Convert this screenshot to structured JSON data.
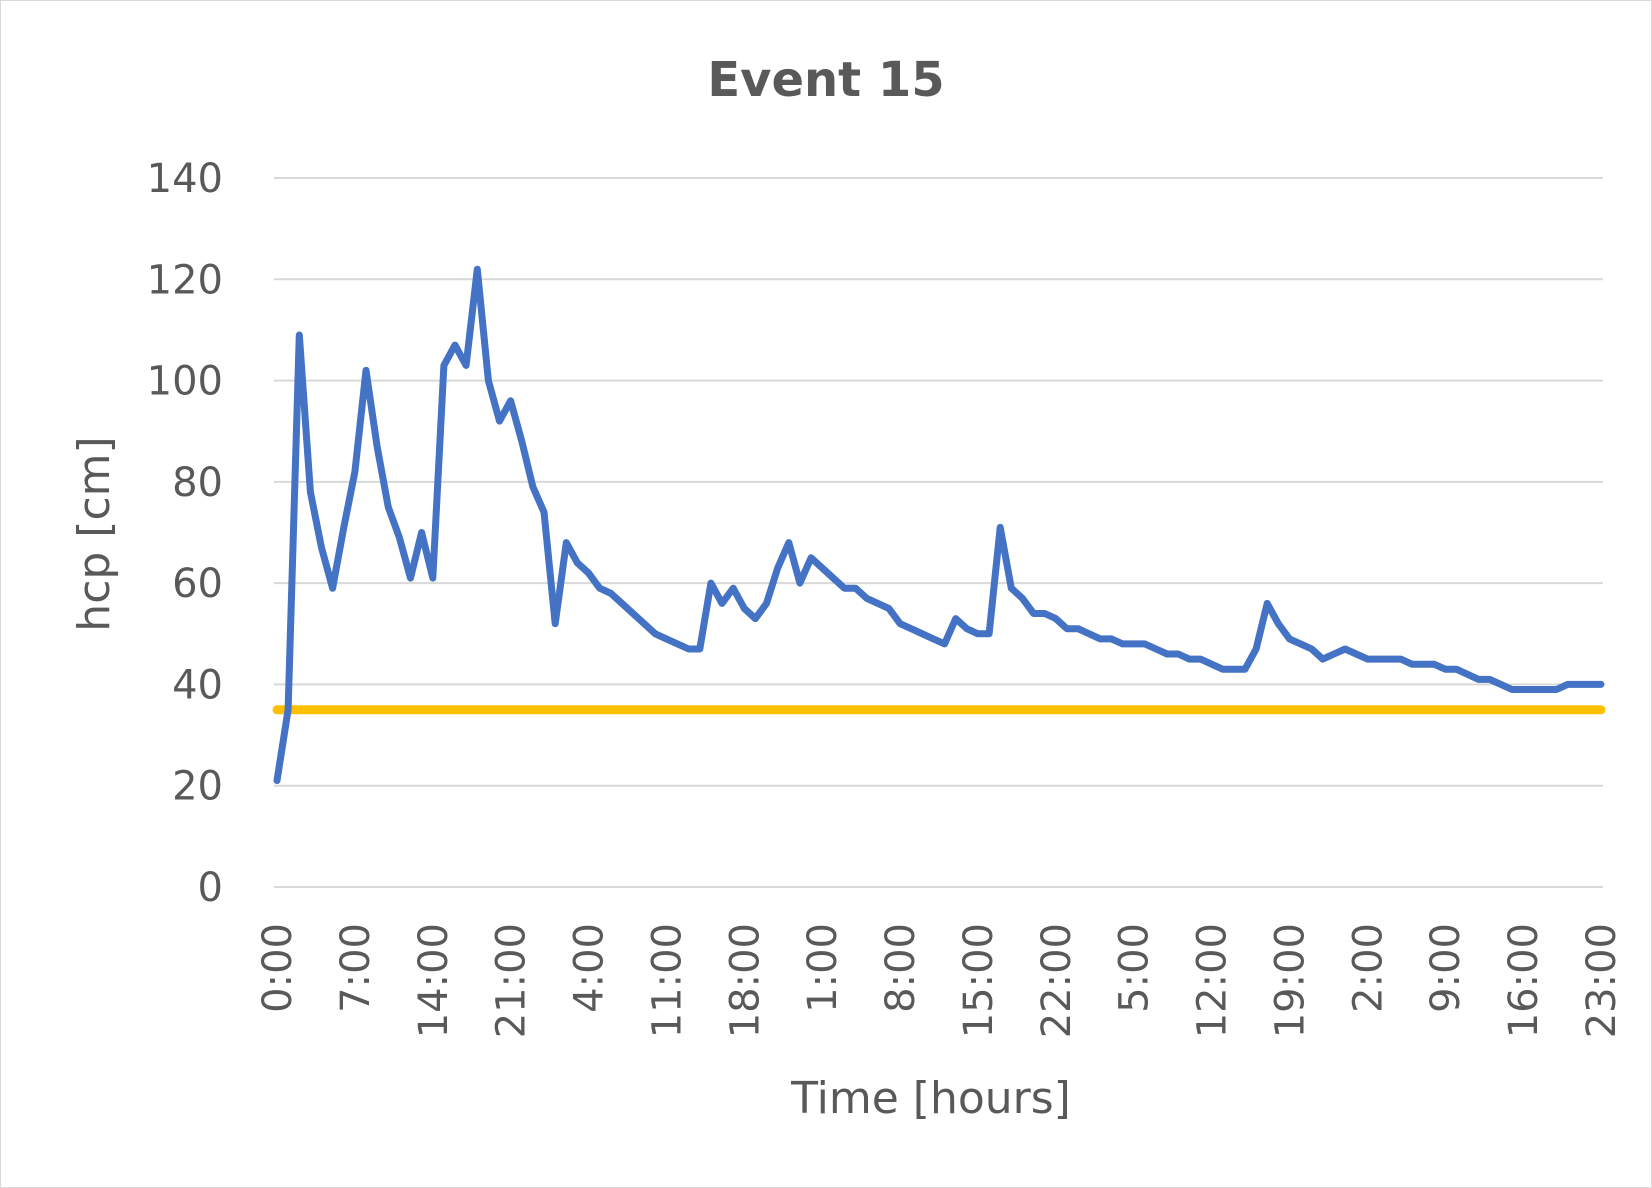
{
  "chart_data": {
    "type": "line",
    "title": "Event 15",
    "xlabel": "Time [hours]",
    "ylabel": "hcp [cm]",
    "ylim": [
      0,
      140
    ],
    "y_ticks": [
      "0",
      "20",
      "40",
      "60",
      "80",
      "100",
      "120",
      "140"
    ],
    "x_tick_labels": [
      "0:00",
      "7:00",
      "14:00",
      "21:00",
      "4:00",
      "11:00",
      "18:00",
      "1:00",
      "8:00",
      "15:00",
      "22:00",
      "5:00",
      "12:00",
      "19:00",
      "2:00",
      "9:00",
      "16:00",
      "23:00"
    ],
    "x_unit": "hours",
    "x_range": [
      0,
      119
    ],
    "grid": true,
    "legend": "none",
    "colors": {
      "hcp": "#4472c4",
      "threshold": "#ffc000",
      "grid": "#d9d9d9",
      "text": "#595959"
    },
    "series": [
      {
        "key": "hcp",
        "x": [
          0,
          1,
          2,
          3,
          4,
          5,
          6,
          7,
          8,
          9,
          10,
          11,
          12,
          13,
          14,
          15,
          16,
          17,
          18,
          19,
          20,
          21,
          22,
          23,
          24,
          25,
          26,
          27,
          28,
          29,
          30,
          31,
          32,
          33,
          34,
          35,
          36,
          37,
          38,
          39,
          40,
          41,
          42,
          43,
          44,
          45,
          46,
          47,
          48,
          49,
          50,
          51,
          52,
          53,
          54,
          55,
          56,
          57,
          58,
          59,
          60,
          61,
          62,
          63,
          64,
          65,
          66,
          67,
          68,
          69,
          70,
          71,
          72,
          73,
          74,
          75,
          76,
          77,
          78,
          79,
          80,
          81,
          82,
          83,
          84,
          85,
          86,
          87,
          88,
          89,
          90,
          91,
          92,
          93,
          94,
          95,
          96,
          97,
          98,
          99,
          100,
          101,
          102,
          103,
          104,
          105,
          106,
          107,
          108,
          109,
          110,
          111,
          112,
          113,
          114,
          115,
          116,
          117,
          118,
          119
        ],
        "values": [
          21,
          35,
          109,
          78,
          67,
          59,
          71,
          82,
          102,
          87,
          75,
          69,
          61,
          70,
          61,
          103,
          107,
          103,
          122,
          100,
          92,
          96,
          88,
          79,
          74,
          52,
          68,
          64,
          62,
          59,
          58,
          56,
          54,
          52,
          50,
          49,
          48,
          47,
          47,
          60,
          56,
          59,
          55,
          53,
          56,
          63,
          68,
          60,
          65,
          63,
          61,
          59,
          59,
          57,
          56,
          55,
          52,
          51,
          50,
          49,
          48,
          53,
          51,
          50,
          50,
          71,
          59,
          57,
          54,
          54,
          53,
          51,
          51,
          50,
          49,
          49,
          48,
          48,
          48,
          47,
          46,
          46,
          45,
          45,
          44,
          43,
          43,
          43,
          47,
          56,
          52,
          49,
          48,
          47,
          45,
          46,
          47,
          46,
          45,
          45,
          45,
          45,
          44,
          44,
          44,
          43,
          43,
          42,
          41,
          41,
          40,
          39,
          39,
          39,
          39,
          39,
          40,
          40,
          40,
          40
        ]
      },
      {
        "key": "threshold",
        "x": [
          0,
          119
        ],
        "values": [
          35,
          35
        ]
      }
    ]
  }
}
